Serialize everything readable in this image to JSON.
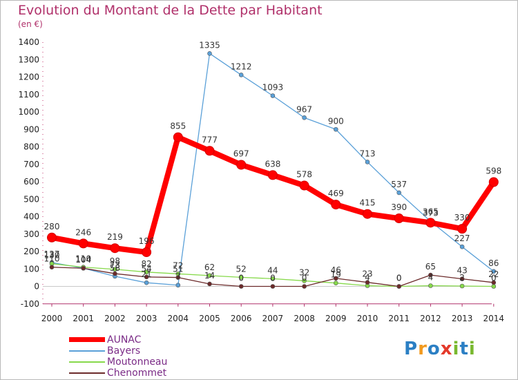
{
  "title": "Evolution du Montant de la Dette par Habitant",
  "subtitle": "(en €)",
  "logo": {
    "letters": [
      "P",
      "r",
      "o",
      "x",
      "i",
      "t",
      "i"
    ],
    "colors": [
      "#2b7fc4",
      "#f29a1f",
      "#2b7fc4",
      "#e43a2b",
      "#79b82f",
      "#2b7fc4",
      "#79b82f"
    ]
  },
  "chart_data": {
    "type": "line",
    "title": "Evolution du Montant de la Dette par Habitant",
    "subtitle": "(en €)",
    "x": [
      "2000",
      "2001",
      "2002",
      "2003",
      "2004",
      "2005",
      "2006",
      "2007",
      "2008",
      "2009",
      "2010",
      "2011",
      "2012",
      "2013",
      "2014"
    ],
    "ylim": [
      -100,
      1400
    ],
    "yticks": [
      "-100",
      "0",
      "100",
      "200",
      "300",
      "400",
      "500",
      "600",
      "700",
      "800",
      "900",
      "1000",
      "1100",
      "1200",
      "1300",
      "1400"
    ],
    "grid": false,
    "legend_position": "bottom-left",
    "series": [
      {
        "name": "AUNAC",
        "color": "#ff0000",
        "values": [
          280,
          246,
          219,
          196,
          855,
          777,
          697,
          638,
          578,
          469,
          415,
          390,
          365,
          330,
          598
        ]
      },
      {
        "name": "Bayers",
        "color": "#5aa0d8",
        "values": [
          137,
          104,
          58,
          21,
          7,
          1335,
          1212,
          1093,
          967,
          900,
          713,
          537,
          373,
          227,
          86
        ]
      },
      {
        "name": "Moutonneau",
        "color": "#86d94a",
        "values": [
          130,
          110,
          98,
          82,
          72,
          62,
          52,
          44,
          32,
          19,
          4,
          0,
          4,
          2,
          0
        ]
      },
      {
        "name": "Chenommet",
        "color": "#6b2a2a",
        "values": [
          110,
          104,
          73,
          54,
          51,
          14,
          0,
          0,
          0,
          46,
          23,
          0,
          65,
          43,
          22
        ]
      }
    ]
  }
}
